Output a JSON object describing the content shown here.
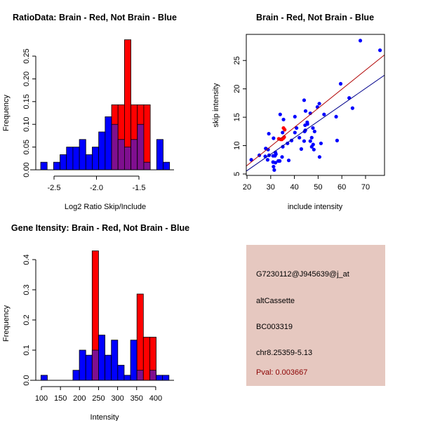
{
  "colors": {
    "red": "#ff0000",
    "blue": "#0000ff",
    "overlap": "#7f0f8f",
    "red_line": "#b00000",
    "blue_line": "#00008b",
    "info_bg": "#e6c8c0",
    "pval": "#8b0000"
  },
  "chart_data": [
    {
      "type": "bar",
      "title": "RatioData: Brain - Red, Not Brain - Blue",
      "xlabel": "Log2 Ratio Skip/Include",
      "ylabel": "Frequency",
      "bin_start": -2.657,
      "bin_width": 0.0759,
      "xticks": [
        -2.5,
        -2.0,
        -1.5
      ],
      "xtick_labels": [
        "-2.5",
        "-2.0",
        "-1.5"
      ],
      "yticks": [
        0,
        0.05,
        0.1,
        0.15,
        0.2,
        0.25
      ],
      "ytick_labels": [
        "0.00",
        "0.05",
        "0.10",
        "0.15",
        "0.20",
        "0.25"
      ],
      "series": [
        {
          "name": "Not Brain",
          "color": "blue",
          "values": [
            0.0167,
            0,
            0.0167,
            0.0333,
            0.05,
            0.05,
            0.0667,
            0.0333,
            0.05,
            0.0833,
            0.1167,
            0.1,
            0.0667,
            0.05,
            0.0667,
            0.1,
            0.0167,
            0,
            0.0667,
            0.0167
          ]
        },
        {
          "name": "Brain",
          "color": "red",
          "values": [
            0,
            0,
            0,
            0,
            0,
            0,
            0,
            0,
            0,
            0,
            0,
            0.143,
            0.143,
            0.286,
            0.143,
            0.143,
            0.143,
            0,
            0,
            0
          ]
        }
      ]
    },
    {
      "type": "scatter",
      "title": "Brain - Red, Not Brain - Blue",
      "xlabel": "include intensity",
      "ylabel": "skip intensity",
      "xlim": [
        19.7,
        78
      ],
      "ylim": [
        4.75,
        29.6
      ],
      "xticks": [
        20,
        30,
        40,
        50,
        60,
        70
      ],
      "yticks": [
        5,
        10,
        15,
        20,
        25
      ],
      "series": [
        {
          "name": "Not Brain",
          "color": "blue",
          "points": [
            [
              21.8,
              7.5
            ],
            [
              25.2,
              8.3
            ],
            [
              27.9,
              9.5
            ],
            [
              28.9,
              9.3
            ],
            [
              27.7,
              8.1
            ],
            [
              28.7,
              7.5
            ],
            [
              29.3,
              8.3
            ],
            [
              29.2,
              12.1
            ],
            [
              31.2,
              11.3
            ],
            [
              31.0,
              8.2
            ],
            [
              31.8,
              8.2
            ],
            [
              32.0,
              8.8
            ],
            [
              32.2,
              8.5
            ],
            [
              31.0,
              7.1
            ],
            [
              32.0,
              7.0
            ],
            [
              33.2,
              7.3
            ],
            [
              33.8,
              7.3
            ],
            [
              31.2,
              6.3
            ],
            [
              31.5,
              5.7
            ],
            [
              34.0,
              15.5
            ],
            [
              35.0,
              12.3
            ],
            [
              35.4,
              14.6
            ],
            [
              35.1,
              9.8
            ],
            [
              34.8,
              8.0
            ],
            [
              37.1,
              10.4
            ],
            [
              37.6,
              7.4
            ],
            [
              38.8,
              10.9
            ],
            [
              40.2,
              15.1
            ],
            [
              40.2,
              12.3
            ],
            [
              40.9,
              13.1
            ],
            [
              42.1,
              11.4
            ],
            [
              42.9,
              9.4
            ],
            [
              44.1,
              10.8
            ],
            [
              44.1,
              18.0
            ],
            [
              44.3,
              12.5
            ],
            [
              44.5,
              13.6
            ],
            [
              44.7,
              16.1
            ],
            [
              44.6,
              12.7
            ],
            [
              45.4,
              14.1
            ],
            [
              45.5,
              13.8
            ],
            [
              46.7,
              15.7
            ],
            [
              46.7,
              10.8
            ],
            [
              47.3,
              11.4
            ],
            [
              47.3,
              9.8
            ],
            [
              47.8,
              13.1
            ],
            [
              47.9,
              10.2
            ],
            [
              48.2,
              9.3
            ],
            [
              48.5,
              12.5
            ],
            [
              49.7,
              16.8
            ],
            [
              50.5,
              17.4
            ],
            [
              50.6,
              8.0
            ],
            [
              51.2,
              10.4
            ],
            [
              52.5,
              15.5
            ],
            [
              57.6,
              15.1
            ],
            [
              58.0,
              10.9
            ],
            [
              59.5,
              20.9
            ],
            [
              63.1,
              18.4
            ],
            [
              64.5,
              16.6
            ],
            [
              67.8,
              28.5
            ],
            [
              76.1,
              26.8
            ]
          ],
          "fit": {
            "slope": 0.29,
            "intercept": -0.21
          }
        },
        {
          "name": "Brain",
          "color": "red",
          "points": [
            [
              33.4,
              11.2
            ],
            [
              34.2,
              11.1
            ],
            [
              34.7,
              11.1
            ],
            [
              35.3,
              11.3
            ],
            [
              35.7,
              11.5
            ],
            [
              35.4,
              13.1
            ],
            [
              35.9,
              12.8
            ]
          ],
          "fit": {
            "slope": 0.336,
            "intercept": -0.22
          }
        }
      ]
    },
    {
      "type": "bar",
      "title": "Gene Itensity: Brain - Red, Not Brain - Blue",
      "xlabel": "Intensity",
      "ylabel": "Frequency",
      "bin_start": 98.8,
      "bin_width": 16.8,
      "xticks": [
        100,
        150,
        200,
        250,
        300,
        350,
        400
      ],
      "xtick_labels": [
        "100",
        "150",
        "200",
        "250",
        "300",
        "350",
        "400"
      ],
      "yticks": [
        0,
        0.1,
        0.2,
        0.3,
        0.4
      ],
      "ytick_labels": [
        "0.0",
        "0.1",
        "0.2",
        "0.3",
        "0.4"
      ],
      "series": [
        {
          "name": "Not Brain",
          "color": "blue",
          "values": [
            0.0167,
            0,
            0,
            0,
            0,
            0.0333,
            0.1,
            0.0833,
            0.1,
            0.15,
            0.0833,
            0.1333,
            0.05,
            0.0167,
            0.1333,
            0.0333,
            0,
            0.0333,
            0.0167,
            0.0167
          ]
        },
        {
          "name": "Brain",
          "color": "red",
          "values": [
            0,
            0,
            0,
            0,
            0,
            0,
            0,
            0,
            0.429,
            0,
            0,
            0,
            0,
            0,
            0,
            0.286,
            0.143,
            0.143,
            0,
            0
          ]
        }
      ]
    }
  ],
  "info": {
    "probe": "G7230112@J945639@j_at",
    "event_type": "altCassette",
    "accession": "BC003319",
    "location": "chr8.25359-5.13",
    "pval": "Pval: 0.003667"
  }
}
